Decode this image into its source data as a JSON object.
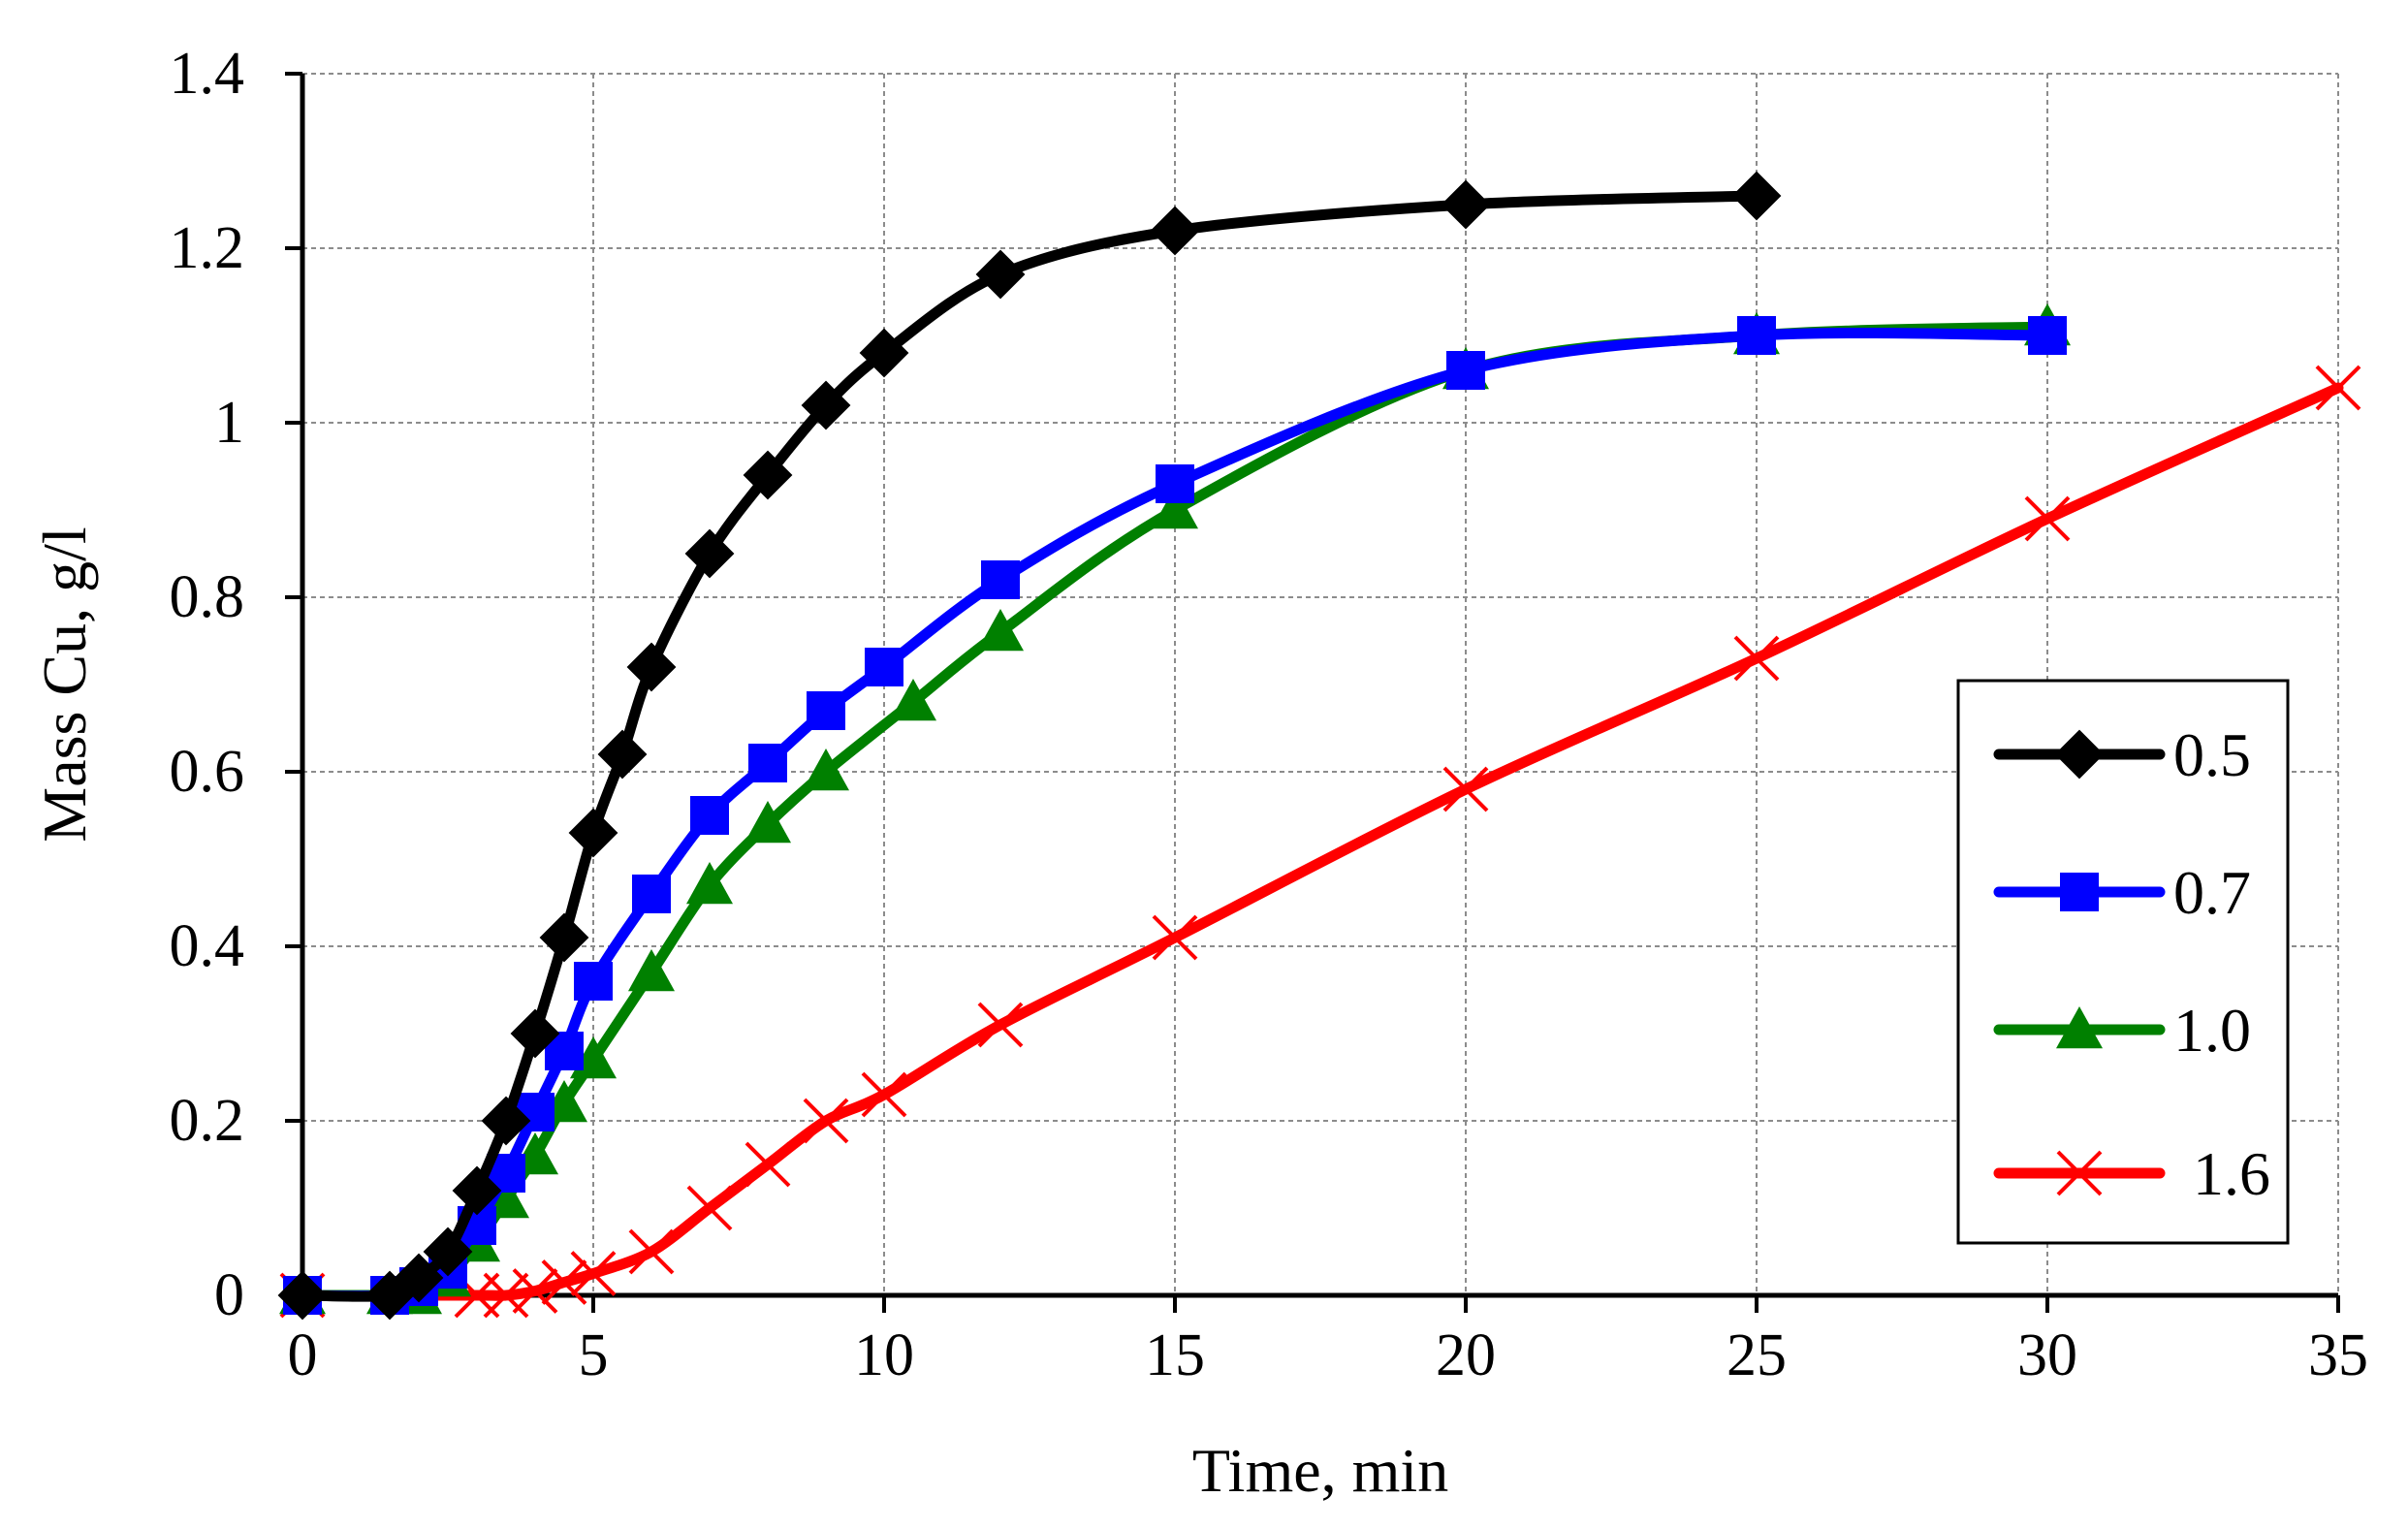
{
  "chart_data": {
    "type": "line",
    "title": "",
    "xlabel": "Time, min",
    "ylabel": "Mass Cu, g/l",
    "xlim": [
      0,
      35
    ],
    "ylim": [
      0,
      1.4
    ],
    "xticks": [
      0,
      5,
      10,
      15,
      20,
      25,
      30,
      35
    ],
    "xtick_labels": [
      "0",
      "5",
      "10",
      "15",
      "20",
      "25",
      "30",
      "35"
    ],
    "yticks": [
      0,
      0.2,
      0.4,
      0.6,
      0.8,
      1.0,
      1.2,
      1.4
    ],
    "ytick_labels": [
      "0",
      "0.2",
      "0.4",
      "0.6",
      "0.8",
      "1",
      "1.2",
      "1.4"
    ],
    "grid": true,
    "legend_position": "right",
    "series": [
      {
        "name": "0.5",
        "color": "#000000",
        "marker": "diamond",
        "points": [
          [
            0,
            0
          ],
          [
            1.5,
            0.0
          ],
          [
            2,
            0.02
          ],
          [
            2.5,
            0.05
          ],
          [
            3,
            0.12
          ],
          [
            3.5,
            0.2
          ],
          [
            4,
            0.3
          ],
          [
            4.5,
            0.41
          ],
          [
            5,
            0.53
          ],
          [
            5.5,
            0.62
          ],
          [
            6,
            0.72
          ],
          [
            7,
            0.85
          ],
          [
            8,
            0.94
          ],
          [
            9,
            1.02
          ],
          [
            10,
            1.08
          ],
          [
            12,
            1.17
          ],
          [
            15,
            1.22
          ],
          [
            20,
            1.25
          ],
          [
            25,
            1.26
          ]
        ]
      },
      {
        "name": "0.7",
        "color": "#0000ff",
        "marker": "square",
        "points": [
          [
            0,
            0
          ],
          [
            1.5,
            0.0
          ],
          [
            2,
            0.01
          ],
          [
            2.5,
            0.03
          ],
          [
            3,
            0.08
          ],
          [
            3.5,
            0.14
          ],
          [
            4,
            0.21
          ],
          [
            4.5,
            0.28
          ],
          [
            5,
            0.36
          ],
          [
            6,
            0.46
          ],
          [
            7,
            0.55
          ],
          [
            8,
            0.61
          ],
          [
            9,
            0.67
          ],
          [
            10,
            0.72
          ],
          [
            12,
            0.82
          ],
          [
            15,
            0.93
          ],
          [
            20,
            1.06
          ],
          [
            25,
            1.1
          ],
          [
            30,
            1.1
          ]
        ]
      },
      {
        "name": "1.0",
        "color": "#008000",
        "marker": "triangle",
        "points": [
          [
            0,
            0
          ],
          [
            1.5,
            0.0
          ],
          [
            2,
            0.0
          ],
          [
            2.5,
            0.02
          ],
          [
            3,
            0.06
          ],
          [
            3.5,
            0.11
          ],
          [
            4,
            0.16
          ],
          [
            4.5,
            0.22
          ],
          [
            5,
            0.27
          ],
          [
            6,
            0.37
          ],
          [
            7,
            0.47
          ],
          [
            8,
            0.54
          ],
          [
            9,
            0.6
          ],
          [
            10.5,
            0.68
          ],
          [
            12,
            0.76
          ],
          [
            15,
            0.9
          ],
          [
            20,
            1.06
          ],
          [
            25,
            1.1
          ],
          [
            30,
            1.11
          ]
        ]
      },
      {
        "name": "1.6",
        "color": "#ff0000",
        "marker": "x",
        "points": [
          [
            0,
            0
          ],
          [
            3,
            0.0
          ],
          [
            3.5,
            0.0
          ],
          [
            4,
            0.005
          ],
          [
            4.5,
            0.015
          ],
          [
            5,
            0.025
          ],
          [
            6,
            0.05
          ],
          [
            7,
            0.1
          ],
          [
            8,
            0.15
          ],
          [
            9,
            0.2
          ],
          [
            10,
            0.23
          ],
          [
            12,
            0.31
          ],
          [
            15,
            0.41
          ],
          [
            20,
            0.58
          ],
          [
            25,
            0.73
          ],
          [
            30,
            0.89
          ],
          [
            35,
            1.04
          ]
        ]
      }
    ]
  }
}
